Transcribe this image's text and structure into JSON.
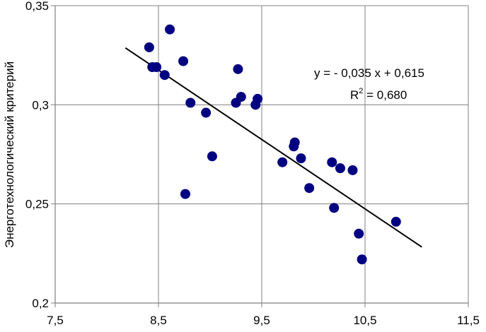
{
  "chart_data": {
    "type": "scatter",
    "title": "",
    "xlabel": "",
    "ylabel": "Энерготехнологический критерий",
    "xlim": [
      7.5,
      11.5
    ],
    "ylim": [
      0.2,
      0.35
    ],
    "x_ticks": [
      7.5,
      8.5,
      9.5,
      10.5,
      11.5
    ],
    "x_tick_labels": [
      "7,5",
      "8,5",
      "9,5",
      "10,5",
      "11,5"
    ],
    "y_ticks": [
      0.2,
      0.25,
      0.3,
      0.35
    ],
    "y_tick_labels": [
      "0,2",
      "0,25",
      "0,3",
      "0,35"
    ],
    "grid": true,
    "point_color": "#000080",
    "trendline_color": "#000000",
    "series": [
      {
        "points": [
          {
            "x": 8.41,
            "y": 0.329
          },
          {
            "x": 8.44,
            "y": 0.319
          },
          {
            "x": 8.48,
            "y": 0.319
          },
          {
            "x": 8.56,
            "y": 0.315
          },
          {
            "x": 8.61,
            "y": 0.338
          },
          {
            "x": 8.74,
            "y": 0.322
          },
          {
            "x": 8.76,
            "y": 0.255
          },
          {
            "x": 8.81,
            "y": 0.301
          },
          {
            "x": 8.96,
            "y": 0.296
          },
          {
            "x": 9.02,
            "y": 0.274
          },
          {
            "x": 9.25,
            "y": 0.301
          },
          {
            "x": 9.27,
            "y": 0.318
          },
          {
            "x": 9.3,
            "y": 0.304
          },
          {
            "x": 9.44,
            "y": 0.3
          },
          {
            "x": 9.46,
            "y": 0.303
          },
          {
            "x": 9.7,
            "y": 0.271
          },
          {
            "x": 9.81,
            "y": 0.279
          },
          {
            "x": 9.82,
            "y": 0.281
          },
          {
            "x": 9.88,
            "y": 0.273
          },
          {
            "x": 9.96,
            "y": 0.258
          },
          {
            "x": 10.18,
            "y": 0.271
          },
          {
            "x": 10.2,
            "y": 0.248
          },
          {
            "x": 10.26,
            "y": 0.268
          },
          {
            "x": 10.38,
            "y": 0.267
          },
          {
            "x": 10.44,
            "y": 0.235
          },
          {
            "x": 10.47,
            "y": 0.222
          },
          {
            "x": 10.8,
            "y": 0.241
          }
        ]
      }
    ],
    "trendline": {
      "x_start": 8.18,
      "x_end": 11.05,
      "slope": -0.035,
      "intercept": 0.615
    },
    "annotations": {
      "equation": "y = - 0,035 x + 0,615",
      "r2_prefix": "R",
      "r2_sup": "2",
      "r2_value": " = 0,680"
    }
  }
}
